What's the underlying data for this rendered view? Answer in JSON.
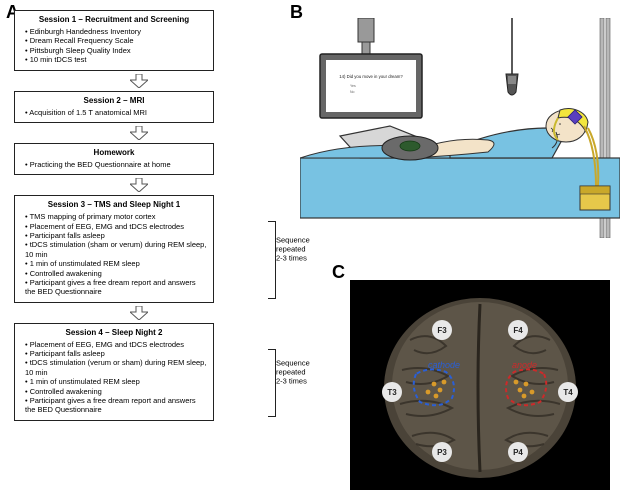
{
  "labels": {
    "A": "A",
    "B": "B",
    "C": "C"
  },
  "panelA": {
    "boxes": [
      {
        "title": "Session 1 – Recruitment and Screening",
        "items": [
          "Edinburgh Handedness Inventory",
          "Dream Recall Frequency Scale",
          "Pittsburgh Sleep Quality Index",
          "10 min tDCS test"
        ]
      },
      {
        "title": "Session 2 – MRI",
        "items": [
          "Acquisition of 1.5 T anatomical MRI"
        ]
      },
      {
        "title": "Homework",
        "items": [
          "Practicing the BED Questionnaire at home"
        ]
      },
      {
        "title": "Session 3 – TMS and Sleep Night 1",
        "items": [
          "TMS mapping of primary motor cortex",
          "Placement of EEG, EMG and tDCS electrodes",
          "Participant falls asleep",
          "tDCS stimulation (sham or verum) during REM sleep, 10 min",
          "1 min of unstimulated REM sleep",
          "Controlled awakening",
          "Participant gives a free dream report and answers the BED Questionnaire"
        ],
        "sequence": "Sequence repeated 2-3 times"
      },
      {
        "title": "Session 4 – Sleep Night 2",
        "items": [
          "Placement of EEG, EMG and tDCS electrodes",
          "Participant falls asleep",
          "tDCS stimulation (verum or sham) during REM sleep, 10 min",
          "1 min of unstimulated REM sleep",
          "Controlled awakening",
          "Participant gives a free dream report and answers the BED Questionnaire"
        ],
        "sequence": "Sequence repeated 2-3 times"
      }
    ],
    "arrow_fill": "#ffffff",
    "arrow_stroke": "#555555"
  },
  "panelB": {
    "monitor_text": "14) Did you move in your dream?",
    "colors": {
      "bed": "#78c2e2",
      "pillow": "#d7d7d7",
      "skin": "#f3e3c8",
      "cap": "#f2e63e",
      "electrode": "#5a3fbf",
      "wire": "#e6c84a",
      "stimbox": "#e6c84a",
      "monitor_frame": "#666666",
      "monitor_screen": "#ffffff",
      "response_box": "#6a6a6a",
      "button": "#2d5a2d",
      "stand": "#999999"
    }
  },
  "panelC": {
    "electrodes": [
      "F3",
      "F4",
      "T3",
      "T4",
      "P3",
      "P4"
    ],
    "labels": {
      "left": "cathode",
      "right": "anode"
    },
    "colors": {
      "background": "#000000",
      "brain_light": "#6b6257",
      "brain_dark": "#3a352e",
      "electrode_fill": "#e8e8e8",
      "electrode_text": "#222222",
      "cathode": "#2a5fd6",
      "anode": "#cc2a2a",
      "target": "#d89a2a"
    }
  }
}
